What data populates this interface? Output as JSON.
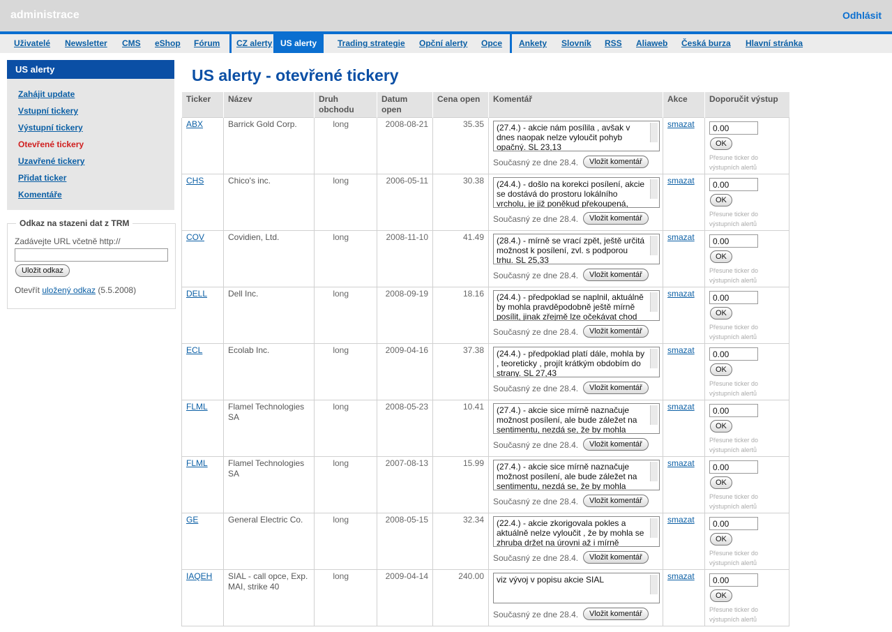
{
  "header": {
    "brand": "administrace",
    "logout": "Odhlásit"
  },
  "nav": {
    "items": [
      {
        "label": "Uživatelé",
        "active": false
      },
      {
        "label": "Newsletter",
        "active": false
      },
      {
        "label": "CMS",
        "active": false
      },
      {
        "label": "eShop",
        "active": false
      },
      {
        "label": "Fórum",
        "active": false
      },
      {
        "label": "CZ alerty",
        "active": false
      },
      {
        "label": "US alerty",
        "active": true
      },
      {
        "label": "Trading strategie",
        "active": false
      },
      {
        "label": "Opční alerty",
        "active": false
      },
      {
        "label": "Opce",
        "active": false
      },
      {
        "label": "Ankety",
        "active": false
      },
      {
        "label": "Slovník",
        "active": false
      },
      {
        "label": "RSS",
        "active": false
      },
      {
        "label": "Aliaweb",
        "active": false
      },
      {
        "label": "Česká burza",
        "active": false
      },
      {
        "label": "Hlavní stránka",
        "active": false
      }
    ]
  },
  "sidebar": {
    "title": "US alerty",
    "items": [
      {
        "label": "Zahájit update",
        "current": false
      },
      {
        "label": "Vstupní tickery",
        "current": false
      },
      {
        "label": "Výstupní tickery",
        "current": false
      },
      {
        "label": "Otevřené tickery",
        "current": true
      },
      {
        "label": "Uzavřené tickery",
        "current": false
      },
      {
        "label": "Přidat ticker",
        "current": false
      },
      {
        "label": "Komentáře",
        "current": false
      }
    ],
    "trm": {
      "legend": "Odkaz na stazeni dat z TRM",
      "label": "Zadávejte URL včetně http://",
      "value": "",
      "button": "Uložit odkaz",
      "open_prefix": "Otevřít ",
      "open_link": "uložený odkaz",
      "open_suffix": " (5.5.2008)"
    }
  },
  "main": {
    "title": "US alerty - otevřené tickery",
    "columns": [
      "Ticker",
      "Název",
      "Druh obchodu",
      "Datum open",
      "Cena open",
      "Komentář",
      "Akce",
      "Doporučit výstup"
    ],
    "comment_meta": "Současný ze dne 28.4.",
    "comment_button": "Vložit komentář",
    "delete_label": "smazat",
    "ok_label": "OK",
    "ok_note": "Přesune ticker do výstupních alertů",
    "rows": [
      {
        "ticker": "ABX",
        "name": "Barrick Gold Corp.",
        "type": "long",
        "date": "2008-08-21",
        "price": "35.35",
        "comment": "(27.4.) - akcie nám posílila , avšak v dnes naopak nelze vyloučit pohyb opačný. SL 23,13",
        "exit": "0.00"
      },
      {
        "ticker": "CHS",
        "name": "Chico's inc.",
        "type": "long",
        "date": "2006-05-11",
        "price": "30.38",
        "comment": "(24.4.) - došlo na korekci posílení, akcie se dostává do prostoru lokálního vrcholu,  je již poněkud překoupená,",
        "exit": "0.00"
      },
      {
        "ticker": "COV",
        "name": "Covidien, Ltd.",
        "type": "long",
        "date": "2008-11-10",
        "price": "41.49",
        "comment": " (28.4.) - mírně se vrací zpět, ještě určitá možnost k posílení, zvl. s podporou trhu. SL 25,33",
        "exit": "0.00"
      },
      {
        "ticker": "DELL",
        "name": "Dell Inc.",
        "type": "long",
        "date": "2008-09-19",
        "price": "18.16",
        "comment": "(24.4.) - předpoklad se naplnil, aktuálně by mohla pravděpodobně ještě mírně posílit, jinak zřejmě lze očekávat chod",
        "exit": "0.00"
      },
      {
        "ticker": "ECL",
        "name": "Ecolab Inc.",
        "type": "long",
        "date": "2009-04-16",
        "price": "37.38",
        "comment": "(24.4.) - předpoklad platí dále, mohla by , teoreticky , projít krátkým obdobím do strany. SL 27,43",
        "exit": "0.00"
      },
      {
        "ticker": "FLML",
        "name": "Flamel Technologies SA",
        "type": "long",
        "date": "2008-05-23",
        "price": "10.41",
        "comment": " (27.4.) - akcie sice mírně naznačuje možnost posílení, ale bude záležet na sentimentu, nezdá se, že by mohla",
        "exit": "0.00"
      },
      {
        "ticker": "FLML",
        "name": "Flamel Technologies SA",
        "type": "long",
        "date": "2007-08-13",
        "price": "15.99",
        "comment": " (27.4.) - akcie sice mírně naznačuje možnost posílení, ale bude záležet na sentimentu, nezdá se, že by mohla",
        "exit": "0.00"
      },
      {
        "ticker": "GE",
        "name": "General Electric Co.",
        "type": "long",
        "date": "2008-05-15",
        "price": "32.34",
        "comment": "(22.4.) - akcie zkorigovala pokles a aktuálně nelze vyloučit , že by mohla se zhruba držet na úrovni až i mírně",
        "exit": "0.00"
      },
      {
        "ticker": "IAQEH",
        "name": "SIAL - call opce, Exp. MAI, strike 40",
        "type": "long",
        "date": "2009-04-14",
        "price": "240.00",
        "comment": "viz vývoj v popisu akcie SIAL",
        "exit": "0.00"
      }
    ]
  }
}
